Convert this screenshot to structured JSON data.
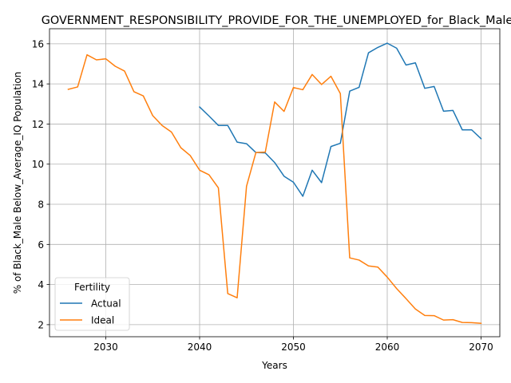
{
  "chart_data": {
    "type": "line",
    "title": "GOVERNMENT_RESPONSIBILITY_PROVIDE_FOR_THE_UNEMPLOYED_for_Black_Male",
    "xlabel": "Years",
    "ylabel": "% of Black_Male Below_Average_IQ Population",
    "xlim": [
      2024,
      2072
    ],
    "ylim": [
      1.4,
      16.75
    ],
    "xticks": [
      2030,
      2040,
      2050,
      2060,
      2070
    ],
    "yticks": [
      2,
      4,
      6,
      8,
      10,
      12,
      14,
      16
    ],
    "grid": true,
    "legend": {
      "title": "Fertility",
      "placement": "lower-left"
    },
    "series": [
      {
        "name": "Actual",
        "color": "#1f77b4",
        "x": [
          2040,
          2041,
          2042,
          2043,
          2044,
          2045,
          2046,
          2047,
          2048,
          2049,
          2050,
          2051,
          2052,
          2053,
          2054,
          2055,
          2056,
          2057,
          2058,
          2059,
          2060,
          2061,
          2062,
          2063,
          2064,
          2065,
          2066,
          2067,
          2068,
          2069,
          2070
        ],
        "y": [
          12.85,
          12.4,
          11.93,
          11.93,
          11.1,
          11.02,
          10.58,
          10.56,
          10.08,
          9.4,
          9.1,
          8.4,
          9.7,
          9.08,
          10.88,
          11.04,
          13.64,
          13.83,
          15.55,
          15.82,
          16.03,
          15.78,
          14.94,
          15.05,
          13.78,
          13.87,
          12.64,
          12.68,
          11.71,
          11.71,
          11.27
        ]
      },
      {
        "name": "Ideal",
        "color": "#ff7f0e",
        "x": [
          2026,
          2027,
          2028,
          2029,
          2030,
          2031,
          2032,
          2033,
          2034,
          2035,
          2036,
          2037,
          2038,
          2039,
          2040,
          2041,
          2042,
          2043,
          2044,
          2045,
          2046,
          2047,
          2048,
          2049,
          2050,
          2051,
          2052,
          2053,
          2054,
          2055,
          2056,
          2057,
          2058,
          2059,
          2060,
          2061,
          2062,
          2063,
          2064,
          2065,
          2066,
          2067,
          2068,
          2069,
          2070
        ],
        "y": [
          13.73,
          13.85,
          15.45,
          15.2,
          15.25,
          14.88,
          14.64,
          13.61,
          13.4,
          12.42,
          11.93,
          11.6,
          10.82,
          10.43,
          9.7,
          9.47,
          8.82,
          3.55,
          3.34,
          8.9,
          10.58,
          10.6,
          13.1,
          12.63,
          13.82,
          13.71,
          14.47,
          13.97,
          14.38,
          13.52,
          5.33,
          5.22,
          4.93,
          4.87,
          4.37,
          3.8,
          3.3,
          2.78,
          2.46,
          2.45,
          2.23,
          2.25,
          2.11,
          2.1,
          2.07
        ]
      }
    ]
  }
}
